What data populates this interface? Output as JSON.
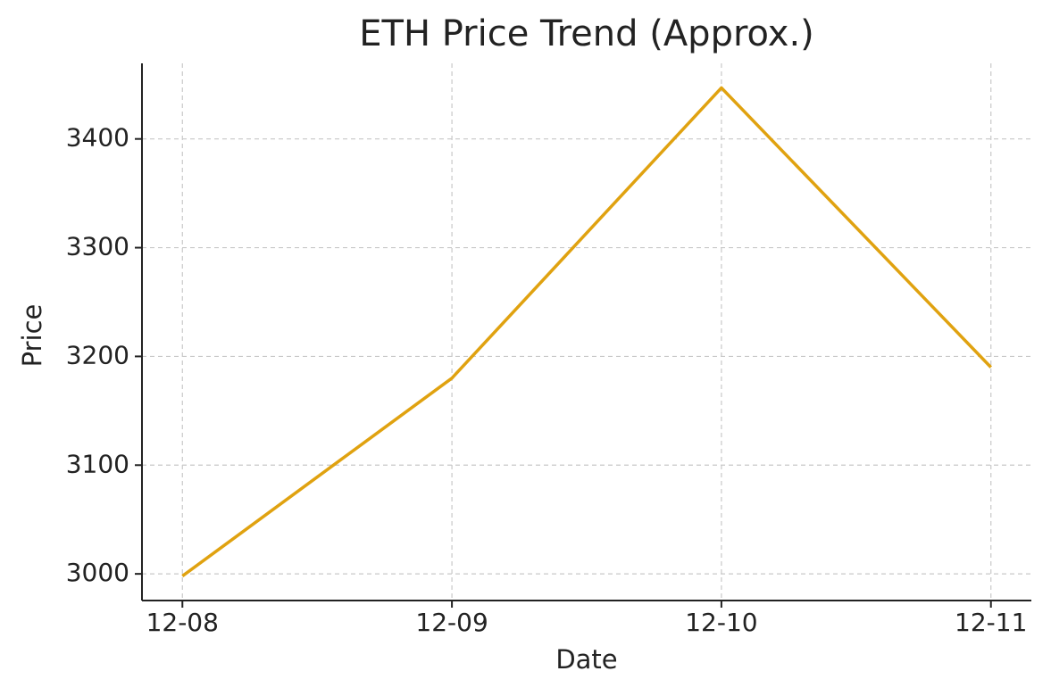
{
  "chart_data": {
    "type": "line",
    "title": "ETH Price Trend (Approx.)",
    "x_label": "Date",
    "y_label": "Price",
    "categories": [
      "12-08",
      "12-09",
      "12-10",
      "12-11"
    ],
    "values": [
      2998,
      3180,
      3447,
      3190
    ],
    "color": "#e0a210",
    "ylim": [
      2975.5,
      3469.5
    ],
    "yticks": [
      3000,
      3100,
      3200,
      3300,
      3400
    ],
    "grid": true
  }
}
